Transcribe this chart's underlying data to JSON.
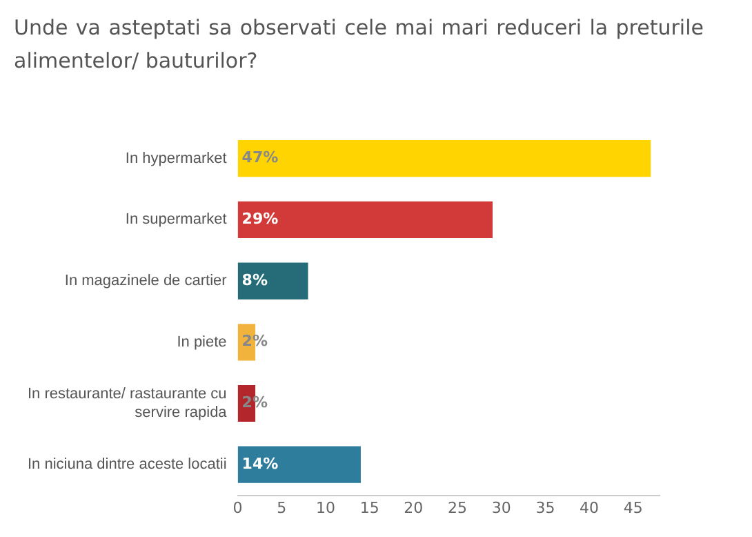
{
  "chart_data": {
    "type": "bar",
    "orientation": "horizontal",
    "title": "Unde va asteptati sa observati cele mai mari reduceri la preturile alimentelor/ bauturilor?",
    "categories": [
      "In hypermarket",
      "In supermarket",
      "In magazinele de cartier",
      "In piete",
      "In restaurante/ rastaurante cu servire rapida",
      "In niciuna dintre aceste locatii"
    ],
    "values": [
      47,
      29,
      8,
      2,
      2,
      14
    ],
    "colors": [
      "#ffd400",
      "#d23a3a",
      "#256c78",
      "#f2b33d",
      "#b3262c",
      "#2f7d9c"
    ],
    "value_labels": [
      "47%",
      "29%",
      "8%",
      "2%",
      "2%",
      "14%"
    ],
    "xlim": [
      0,
      48
    ],
    "xticks": [
      0,
      5,
      10,
      15,
      20,
      25,
      30,
      35,
      40,
      45
    ],
    "grid": false,
    "legend": false
  }
}
